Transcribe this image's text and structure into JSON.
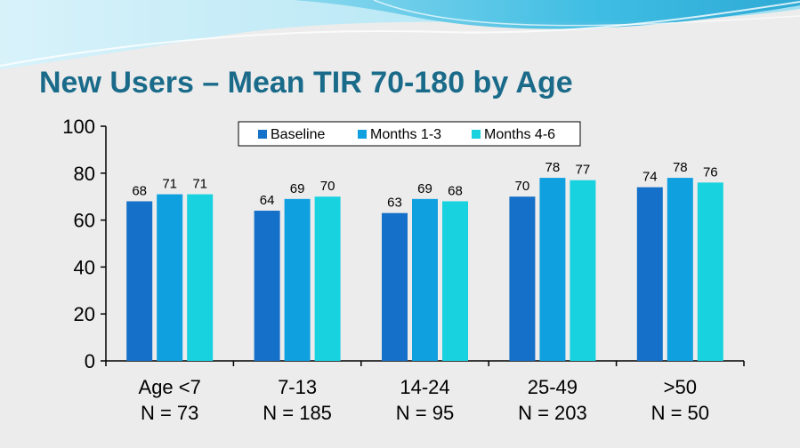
{
  "slide": {
    "title": "New Users – Mean TIR 70-180 by Age",
    "accent_color": "#1a6b8a",
    "background_color": "#ececec"
  },
  "chart_data": {
    "type": "bar",
    "title": "New Users – Mean TIR 70-180 by Age",
    "xlabel": "",
    "ylabel": "",
    "ylim": [
      0,
      100
    ],
    "yticks": [
      0,
      20,
      40,
      60,
      80,
      100
    ],
    "grid": false,
    "legend_position": "top-center",
    "categories": [
      {
        "label": "Age <7",
        "n_label": "N = 73"
      },
      {
        "label": "7-13",
        "n_label": "N = 185"
      },
      {
        "label": "14-24",
        "n_label": "N = 95"
      },
      {
        "label": "25-49",
        "n_label": "N = 203"
      },
      {
        "label": ">50",
        "n_label": "N = 50"
      }
    ],
    "series": [
      {
        "name": "Baseline",
        "color": "#1470c8",
        "values": [
          68,
          64,
          63,
          70,
          74
        ]
      },
      {
        "name": "Months 1-3",
        "color": "#0fa0e0",
        "values": [
          71,
          69,
          69,
          78,
          78
        ]
      },
      {
        "name": "Months 4-6",
        "color": "#19d2e0",
        "values": [
          71,
          70,
          68,
          77,
          76
        ]
      }
    ]
  }
}
